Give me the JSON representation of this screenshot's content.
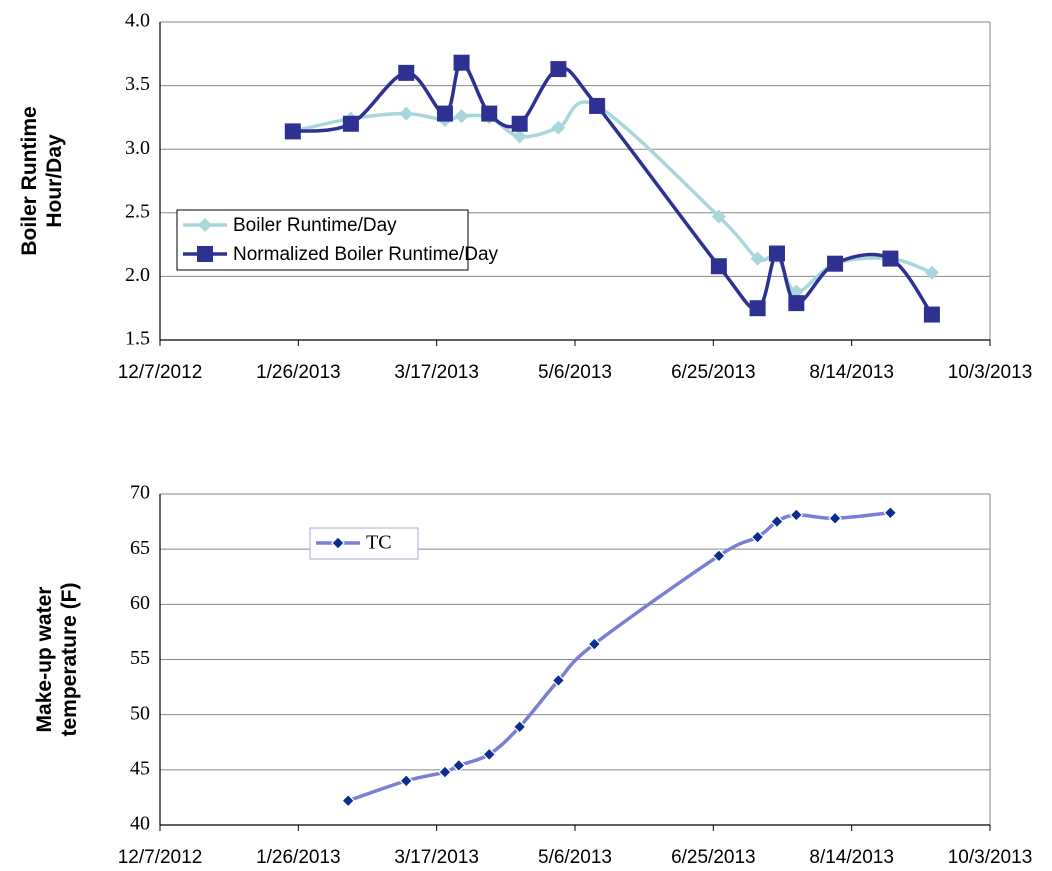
{
  "chart_data": [
    {
      "type": "line",
      "ylabel": [
        "Boiler Runtime",
        "Hour/Day"
      ],
      "x": [
        "2013-01-24",
        "2013-02-14",
        "2013-03-06",
        "2013-03-20",
        "2013-03-26",
        "2013-04-05",
        "2013-04-16",
        "2013-04-30",
        "2013-05-14",
        "2013-06-27",
        "2013-07-11",
        "2013-07-18",
        "2013-07-25",
        "2013-08-08",
        "2013-08-28",
        "2013-09-12"
      ],
      "series": [
        {
          "name": "Boiler Runtime/Day",
          "color": "#a9d6db",
          "marker": "diamond",
          "values": [
            3.14,
            3.24,
            3.28,
            3.23,
            3.26,
            3.25,
            3.1,
            3.17,
            3.34,
            2.47,
            2.14,
            2.16,
            1.88,
            2.1,
            2.14,
            2.03
          ]
        },
        {
          "name": "Normalized Boiler Runtime/Day",
          "color": "#2e3192",
          "marker": "square",
          "values": [
            3.14,
            3.2,
            3.6,
            3.28,
            3.68,
            3.28,
            3.2,
            3.63,
            3.34,
            2.08,
            1.75,
            2.18,
            1.79,
            2.1,
            2.14,
            1.7
          ]
        }
      ],
      "xlim": [
        "2012-12-07",
        "2013-10-03"
      ],
      "xticks": [
        {
          "value": "2012-12-07",
          "label": "12/7/2012"
        },
        {
          "value": "2013-01-26",
          "label": "1/26/2013"
        },
        {
          "value": "2013-03-17",
          "label": "3/17/2013"
        },
        {
          "value": "2013-05-06",
          "label": "5/6/2013"
        },
        {
          "value": "2013-06-25",
          "label": "6/25/2013"
        },
        {
          "value": "2013-08-14",
          "label": "8/14/2013"
        },
        {
          "value": "2013-10-03",
          "label": "10/3/2013"
        }
      ],
      "ylim": [
        1.5,
        4.0
      ],
      "yticks": [
        {
          "value": 1.5,
          "label": "1.5"
        },
        {
          "value": 2,
          "label": "2.0"
        },
        {
          "value": 2.5,
          "label": "2.5"
        },
        {
          "value": 3,
          "label": "3.0"
        },
        {
          "value": 3.5,
          "label": "3.5"
        },
        {
          "value": 4,
          "label": "4.0"
        }
      ],
      "grid": true,
      "legend": "center-left"
    },
    {
      "type": "line",
      "ylabel": [
        "Make-up water",
        "temperature (F)"
      ],
      "x": [
        "2013-02-13",
        "2013-03-06",
        "2013-03-20",
        "2013-03-25",
        "2013-04-05",
        "2013-04-16",
        "2013-04-30",
        "2013-05-13",
        "2013-06-27",
        "2013-07-11",
        "2013-07-18",
        "2013-07-25",
        "2013-08-08",
        "2013-08-28"
      ],
      "series": [
        {
          "name": "TC",
          "color": "#7b7fd4",
          "marker_color": "#0b2d8c",
          "marker": "diamond",
          "values": [
            42.2,
            44.0,
            44.8,
            45.4,
            46.4,
            48.9,
            53.1,
            56.4,
            64.4,
            66.1,
            67.5,
            68.1,
            67.8,
            68.3
          ]
        }
      ],
      "xlim": [
        "2012-12-07",
        "2013-10-03"
      ],
      "xticks": [
        {
          "value": "2012-12-07",
          "label": "12/7/2012"
        },
        {
          "value": "2013-01-26",
          "label": "1/26/2013"
        },
        {
          "value": "2013-03-17",
          "label": "3/17/2013"
        },
        {
          "value": "2013-05-06",
          "label": "5/6/2013"
        },
        {
          "value": "2013-06-25",
          "label": "6/25/2013"
        },
        {
          "value": "2013-08-14",
          "label": "8/14/2013"
        },
        {
          "value": "2013-10-03",
          "label": "10/3/2013"
        }
      ],
      "ylim": [
        40,
        70
      ],
      "yticks": [
        40,
        45,
        50,
        55,
        60,
        65,
        70
      ],
      "grid": true,
      "legend": "top-left"
    }
  ]
}
